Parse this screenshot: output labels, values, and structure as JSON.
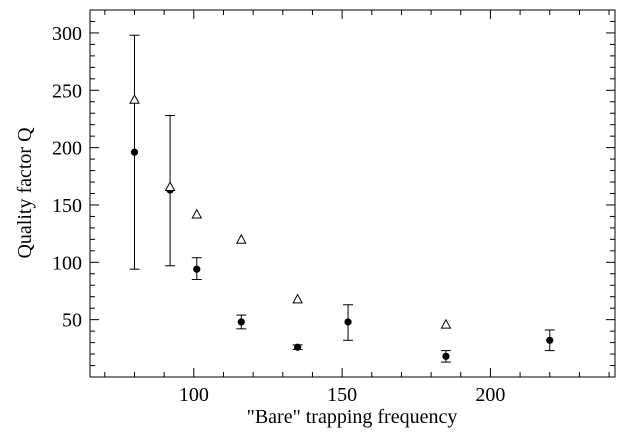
{
  "chart_data": {
    "type": "scatter",
    "title": "",
    "xlabel": "\"Bare\" trapping frequency",
    "ylabel": "Quality factor Q",
    "xlim": [
      65,
      242
    ],
    "ylim": [
      0,
      320
    ],
    "x_ticks": [
      100,
      150,
      200
    ],
    "y_ticks": [
      50,
      100,
      150,
      200,
      250,
      300
    ],
    "x_minor_step": 10,
    "y_minor_step": 10,
    "grid": false,
    "legend": "none",
    "series": [
      {
        "marker": "filled-circle",
        "points": [
          {
            "x": 80,
            "y": 196,
            "err_low": 94,
            "err_high": 298
          },
          {
            "x": 92,
            "y": 163,
            "err_low": 97,
            "err_high": 228
          },
          {
            "x": 101,
            "y": 94,
            "err_low": 85,
            "err_high": 104
          },
          {
            "x": 116,
            "y": 48,
            "err_low": 42,
            "err_high": 54
          },
          {
            "x": 135,
            "y": 26,
            "err_low": 24,
            "err_high": 28
          },
          {
            "x": 152,
            "y": 48,
            "err_low": 32,
            "err_high": 63
          },
          {
            "x": 185,
            "y": 18,
            "err_low": 13,
            "err_high": 23
          },
          {
            "x": 220,
            "y": 32,
            "err_low": 23,
            "err_high": 41
          }
        ]
      },
      {
        "marker": "open-triangle",
        "points": [
          {
            "x": 80,
            "y": 242
          },
          {
            "x": 92,
            "y": 166
          },
          {
            "x": 101,
            "y": 142
          },
          {
            "x": 116,
            "y": 120
          },
          {
            "x": 135,
            "y": 68
          },
          {
            "x": 185,
            "y": 46
          }
        ]
      }
    ]
  }
}
